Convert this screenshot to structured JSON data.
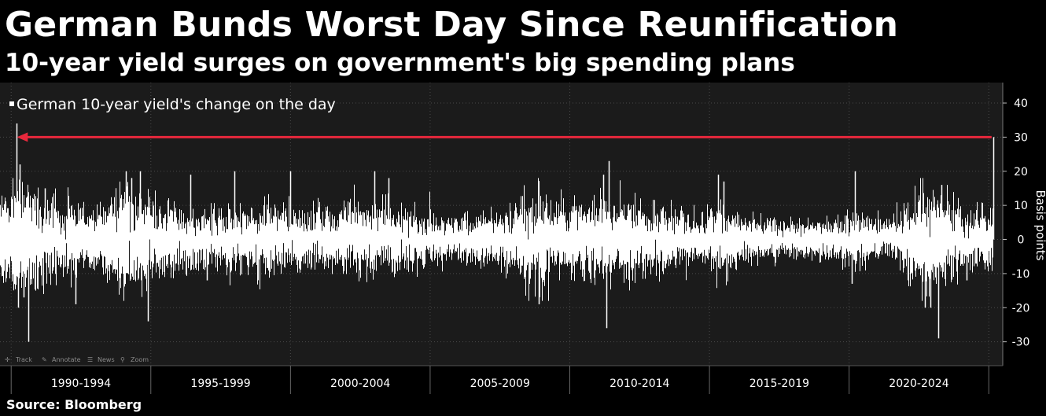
{
  "header": {
    "title": "German Bunds Worst Day Since Reunification",
    "subtitle": "10-year yield surges on government's big spending plans"
  },
  "footer": {
    "source": "Source: Bloomberg"
  },
  "toolbar": {
    "items": [
      {
        "label": "Track",
        "icon": "crosshair-icon"
      },
      {
        "label": "Annotate",
        "icon": "pencil-icon"
      },
      {
        "label": "News",
        "icon": "news-icon"
      },
      {
        "label": "Zoom",
        "icon": "magnifier-icon"
      }
    ]
  },
  "colors": {
    "background": "#000000",
    "plot_background": "#1b1b1b",
    "series": "#ffffff",
    "arrow": "#e8283c",
    "grid": "#4a4a4a",
    "text": "#ffffff"
  },
  "chart_data": {
    "type": "bar",
    "title": "German Bunds Worst Day Since Reunification",
    "subtitle": "10-year yield surges on government's big spending plans",
    "ylabel": "Basis points",
    "ylim": [
      -37,
      46
    ],
    "yticks": [
      40,
      30,
      20,
      10,
      0,
      -10,
      -20,
      -30
    ],
    "xlim": [
      1989.6,
      2025.5
    ],
    "x_period_labels": [
      "1990-1994",
      "1995-1999",
      "2000-2004",
      "2005-2009",
      "2010-2014",
      "2015-2019",
      "2020-2024"
    ],
    "x_period_starts": [
      1990,
      1995,
      2000,
      2005,
      2010,
      2015,
      2020,
      2025
    ],
    "legend": {
      "label": "German 10-year yield's change on the day",
      "position": "top-left"
    },
    "grid": true,
    "series": [
      {
        "name": "German 10-year yield's change on the day",
        "volatility_profile": [
          [
            1989.6,
            6
          ],
          [
            1990.0,
            6.5
          ],
          [
            1990.5,
            8
          ],
          [
            1991.0,
            6
          ],
          [
            1991.6,
            5
          ],
          [
            1992.5,
            4.5
          ],
          [
            1993.5,
            5
          ],
          [
            1994.0,
            7.5
          ],
          [
            1994.6,
            6.5
          ],
          [
            1995.5,
            5
          ],
          [
            1996.5,
            4
          ],
          [
            1997.5,
            4
          ],
          [
            1998.0,
            4
          ],
          [
            1998.7,
            4.5
          ],
          [
            1999.5,
            4.5
          ],
          [
            2000.5,
            4
          ],
          [
            2001.5,
            4
          ],
          [
            2002.5,
            4.5
          ],
          [
            2003.5,
            4.5
          ],
          [
            2004.5,
            3.5
          ],
          [
            2005.5,
            3
          ],
          [
            2006.5,
            3
          ],
          [
            2007.5,
            3.5
          ],
          [
            2008.3,
            5.5
          ],
          [
            2008.9,
            6
          ],
          [
            2009.5,
            5
          ],
          [
            2010.5,
            5
          ],
          [
            2011.4,
            6
          ],
          [
            2011.9,
            6
          ],
          [
            2012.5,
            4.5
          ],
          [
            2013.5,
            4
          ],
          [
            2014.5,
            3
          ],
          [
            2015.3,
            5
          ],
          [
            2015.8,
            4
          ],
          [
            2016.5,
            3
          ],
          [
            2017.5,
            2.5
          ],
          [
            2018.5,
            2.5
          ],
          [
            2019.5,
            3
          ],
          [
            2020.3,
            3.5
          ],
          [
            2021.0,
            2.5
          ],
          [
            2021.8,
            3.5
          ],
          [
            2022.3,
            6
          ],
          [
            2022.9,
            7
          ],
          [
            2023.5,
            5
          ],
          [
            2024.3,
            4
          ],
          [
            2024.9,
            4
          ],
          [
            2025.17,
            4
          ]
        ],
        "notable_moves": [
          {
            "x": 1990.2,
            "y": 34
          },
          {
            "x": 1990.25,
            "y": -20
          },
          {
            "x": 1990.3,
            "y": 22
          },
          {
            "x": 1990.6,
            "y": -30
          },
          {
            "x": 1990.45,
            "y": -17
          },
          {
            "x": 1991.2,
            "y": 15
          },
          {
            "x": 1992.3,
            "y": -19
          },
          {
            "x": 1994.1,
            "y": 20
          },
          {
            "x": 1994.3,
            "y": 18
          },
          {
            "x": 1994.6,
            "y": 20
          },
          {
            "x": 1994.9,
            "y": -24
          },
          {
            "x": 1996.4,
            "y": 19
          },
          {
            "x": 1997.0,
            "y": -12
          },
          {
            "x": 1998.0,
            "y": 20
          },
          {
            "x": 2000.0,
            "y": 20
          },
          {
            "x": 2003.0,
            "y": 20
          },
          {
            "x": 2003.5,
            "y": 18
          },
          {
            "x": 2008.9,
            "y": -19
          },
          {
            "x": 2011.4,
            "y": 23
          },
          {
            "x": 2011.3,
            "y": -26
          },
          {
            "x": 2011.2,
            "y": 19
          },
          {
            "x": 2015.3,
            "y": 19
          },
          {
            "x": 2015.5,
            "y": 17
          },
          {
            "x": 2020.2,
            "y": 20
          },
          {
            "x": 2020.1,
            "y": -13
          },
          {
            "x": 2022.7,
            "y": -20
          },
          {
            "x": 2022.9,
            "y": -20
          },
          {
            "x": 2023.2,
            "y": -29
          },
          {
            "x": 2023.3,
            "y": 16
          },
          {
            "x": 2024.2,
            "y": -12
          },
          {
            "x": 2025.17,
            "y": 30
          }
        ]
      }
    ],
    "annotations": [
      {
        "type": "arrow",
        "from": {
          "x": 2025.1,
          "y": 30
        },
        "to": {
          "x": 1990.2,
          "y": 30
        },
        "color": "#e8283c"
      }
    ]
  }
}
